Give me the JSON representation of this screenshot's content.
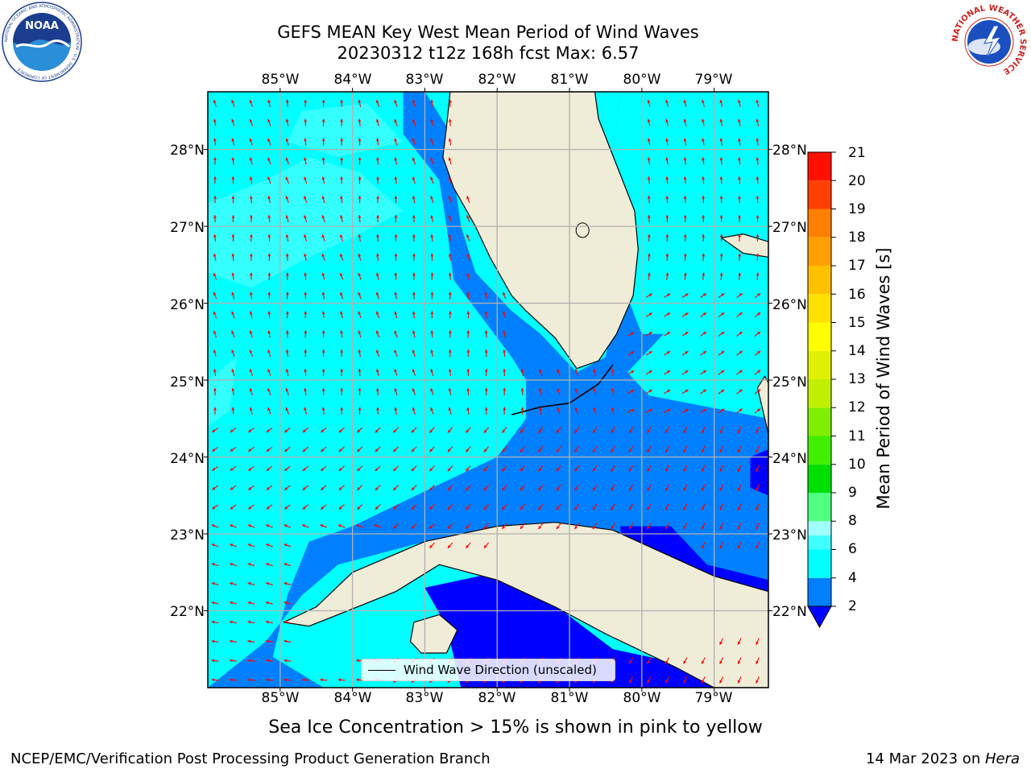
{
  "header": {
    "title_line1": "GEFS MEAN Key West Mean Period of Wind Waves",
    "title_line2": "20230312 t12z 168h fcst   Max: 6.57"
  },
  "logos": {
    "left": "NOAA",
    "left_ring_text": "NATIONAL OCEANIC AND ATMOSPHERIC ADMINISTRATION · U.S. DEPARTMENT OF COMMERCE",
    "right_ring_text": "NATIONAL WEATHER SERVICE"
  },
  "map": {
    "lon_labels": [
      "85°W",
      "84°W",
      "83°W",
      "82°W",
      "81°W",
      "80°W",
      "79°W"
    ],
    "lat_labels": [
      "28°N",
      "27°N",
      "26°N",
      "25°N",
      "24°N",
      "23°N",
      "22°N"
    ],
    "extent": {
      "lon_min": -86.0,
      "lon_max": -78.25,
      "lat_min": 21.0,
      "lat_max": 28.75
    },
    "colors": {
      "land": "#efecd8",
      "gridline": "#b0b0b0",
      "arrow": "#ff0000",
      "coast": "#000000"
    },
    "legend_label": "Wind Wave Direction (unscaled)"
  },
  "colorbar": {
    "title": "Mean Period of Wind Waves [s]",
    "ticks": [
      "21",
      "20",
      "19",
      "18",
      "17",
      "16",
      "15",
      "14",
      "13",
      "12",
      "11",
      "10",
      "9",
      "8",
      "6",
      "4",
      "2"
    ],
    "levels": [
      2,
      4,
      6,
      7,
      8,
      9,
      10,
      11,
      12,
      13,
      14,
      15,
      16,
      17,
      18,
      19,
      20,
      21
    ],
    "colors": [
      "#0080ff",
      "#00ffff",
      "#40ffff",
      "#a0ffff",
      "#50ff80",
      "#00e000",
      "#40ee00",
      "#80ee00",
      "#c0f000",
      "#e0f000",
      "#ffff00",
      "#ffe000",
      "#ffc000",
      "#ffa000",
      "#ff8000",
      "#ff4000",
      "#ff1000"
    ],
    "under_color": "#0000ff"
  },
  "note": "Sea Ice Concentration > 15% is shown in pink to yellow",
  "footer": {
    "left": "NCEP/EMC/Verification Post Processing Product Generation Branch",
    "right_date": "14 Mar 2023 on ",
    "right_machine": "Hera"
  }
}
